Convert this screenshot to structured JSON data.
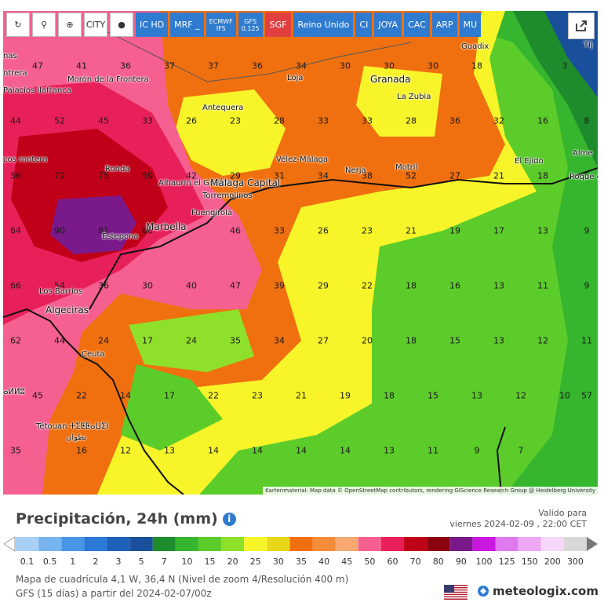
{
  "toolbar": {
    "buttons": [
      {
        "label": "↻",
        "name": "refresh-icon",
        "kind": "white"
      },
      {
        "label": "⚲",
        "name": "location-icon",
        "kind": "white"
      },
      {
        "label": "⊕",
        "name": "zoom-icon",
        "kind": "white"
      },
      {
        "label": "CITY",
        "name": "city-icon",
        "kind": "white"
      },
      {
        "label": "●",
        "name": "point-icon",
        "kind": "white"
      },
      {
        "label": "IC HD",
        "name": "model-ic-hd",
        "kind": "blue"
      },
      {
        "label": "MRF _",
        "name": "model-mrf",
        "kind": "blue"
      },
      {
        "label": "ECMWF IFS",
        "name": "model-ecmwf-ifs",
        "kind": "blue"
      },
      {
        "label": "GFS 0,125",
        "name": "model-gfs",
        "kind": "blue"
      },
      {
        "label": "SGF",
        "name": "model-sgf",
        "kind": "red"
      },
      {
        "label": "Reino Unido",
        "name": "model-reino-unido",
        "kind": "blue"
      },
      {
        "label": "CI",
        "name": "model-ci",
        "kind": "blue"
      },
      {
        "label": "JOYA",
        "name": "model-joya",
        "kind": "blue"
      },
      {
        "label": "CAC",
        "name": "model-cac",
        "kind": "blue"
      },
      {
        "label": "ARP",
        "name": "model-arp",
        "kind": "blue"
      },
      {
        "label": "MU",
        "name": "model-mu",
        "kind": "blue"
      }
    ]
  },
  "map": {
    "attribution": "Kartenmaterial: Map data © OpenStreetMap contributors, rendering GIScience Research Group @ Heidelberg University",
    "cities": [
      "nas",
      "ntrera",
      "Morón de la Frontera",
      "Palacios llafranca",
      "Loja",
      "Granada",
      "La Zubia",
      "Guadix",
      "Antequera",
      "Vélez-Málaga",
      "Nerja",
      "Motril",
      "El Ejido",
      "Alme",
      "Roque de Ma",
      "Ronda",
      "Alhaurín el Grande",
      "Málaga Capital",
      "Torremolinos",
      "Fuengirola",
      "Marbella",
      "Estepona",
      "Los Barrios",
      "Algeciras",
      "Ceuta",
      "cos rontera",
      "Tétouan ⵜⵉⵟⵟⴰⵡⵉⵏ",
      "تطوان",
      "ⴰⵍⵍⵓ",
      "Tíj"
    ],
    "values": [
      "47",
      "41",
      "36",
      "37",
      "37",
      "36",
      "34",
      "30",
      "30",
      "30",
      "18",
      "3",
      "44",
      "52",
      "45",
      "33",
      "26",
      "23",
      "28",
      "33",
      "33",
      "28",
      "36",
      "32",
      "16",
      "8",
      "56",
      "72",
      "75",
      "59",
      "42",
      "29",
      "31",
      "34",
      "38",
      "52",
      "27",
      "21",
      "18",
      "5",
      "64",
      "90",
      "81",
      "66",
      "46",
      "33",
      "26",
      "23",
      "21",
      "19",
      "17",
      "13",
      "9",
      "66",
      "54",
      "36",
      "30",
      "40",
      "47",
      "39",
      "29",
      "22",
      "18",
      "16",
      "13",
      "11",
      "9",
      "62",
      "44",
      "24",
      "17",
      "24",
      "35",
      "34",
      "27",
      "20",
      "18",
      "15",
      "13",
      "12",
      "11",
      "45",
      "22",
      "14",
      "17",
      "22",
      "23",
      "21",
      "19",
      "18",
      "15",
      "13",
      "12",
      "10",
      "57",
      "35",
      "16",
      "12",
      "13",
      "14",
      "14",
      "14",
      "14",
      "13",
      "11",
      "9",
      "7"
    ]
  },
  "title": "Precipitación, 24h (mm)",
  "valid_label": "Valido para",
  "valid_date": "viernes 2024-02-09 , 22:00 CET",
  "legend": {
    "labels": [
      "0.1",
      "0.5",
      "1",
      "2",
      "3",
      "5",
      "7",
      "10",
      "15",
      "20",
      "25",
      "30",
      "35",
      "40",
      "45",
      "50",
      "60",
      "70",
      "80",
      "90",
      "100",
      "125",
      "150",
      "200",
      "300"
    ],
    "colors": [
      "#a8d0f5",
      "#78b4ee",
      "#4a96e6",
      "#2a7ad6",
      "#1e5fb8",
      "#1a4f9c",
      "#1e8c2c",
      "#36b52e",
      "#5ccc2a",
      "#8ee02a",
      "#f7f52a",
      "#e8d81a",
      "#f07010",
      "#f58c3a",
      "#f7a870",
      "#f56090",
      "#e8205a",
      "#c00018",
      "#8a0010",
      "#7a1a8a",
      "#c818e0",
      "#e078f0",
      "#eca8f5",
      "#f5d8f8",
      "#d8d8d8"
    ]
  },
  "footer": {
    "line1": "Mapa de cuadrícula 4,1 W, 36,4 N (Nivel de zoom 4/Resolución 400 m)",
    "line2": "GFS (15 días) a partir del 2024-02-07/00z",
    "brand": "meteologix.com"
  }
}
